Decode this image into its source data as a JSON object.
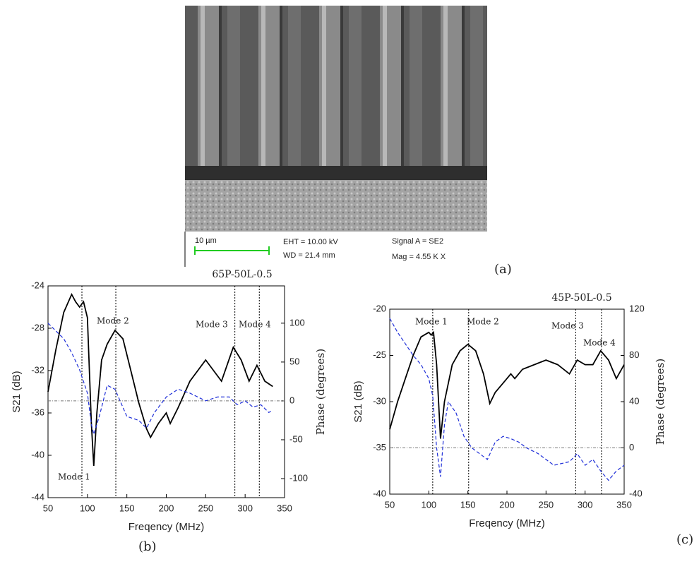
{
  "image": {
    "scale_bar": "10 µm",
    "eht": "EHT = 10.00 kV",
    "wd": "WD = 21.4 mm",
    "signal": "Signal A = SE2",
    "mag": "Mag =  4.55 K X"
  },
  "panel_labels": [
    "(a)",
    "(b)",
    "(c)"
  ],
  "chart_data": [
    {
      "type": "line",
      "title": "65P-50L-0.5",
      "xlabel": "Freqency (MHz)",
      "ylabel": "S21 (dB)",
      "y2label": "Phase (degrees)",
      "xlim": [
        50,
        350
      ],
      "xticks": [
        50,
        100,
        150,
        200,
        250,
        300,
        350
      ],
      "ylim": [
        -44,
        -24
      ],
      "yticks": [
        -44,
        -40,
        -36,
        -32,
        -28,
        -24
      ],
      "y2lim": [
        -124.5,
        148
      ],
      "y2ticks": [
        -100,
        -50,
        0,
        50,
        100
      ],
      "annotations": [
        {
          "text": "Mode 1",
          "x": 93
        },
        {
          "text": "Mode 2",
          "x": 136
        },
        {
          "text": "Mode 3",
          "x": 287
        },
        {
          "text": "Mode 4",
          "x": 318
        }
      ],
      "series": [
        {
          "color": "#000000",
          "axis": "y",
          "x": [
            50,
            60,
            70,
            80,
            85,
            90,
            95,
            100,
            105,
            108,
            112,
            118,
            125,
            135,
            145,
            155,
            165,
            175,
            180,
            190,
            200,
            205,
            215,
            230,
            250,
            260,
            270,
            285,
            295,
            305,
            315,
            325,
            335
          ],
          "values": [
            -34,
            -30,
            -26.5,
            -24.8,
            -25.5,
            -26,
            -25.5,
            -27,
            -37,
            -41,
            -36,
            -31,
            -29.5,
            -28.2,
            -29,
            -32,
            -35,
            -37.5,
            -38.3,
            -37,
            -36,
            -37,
            -35.5,
            -33,
            -31,
            -32,
            -33,
            -29.8,
            -31,
            -33,
            -31.5,
            -33,
            -33.5
          ]
        },
        {
          "color": "#1f2fd8",
          "axis": "y2",
          "dash": true,
          "x": [
            50,
            60,
            70,
            80,
            90,
            100,
            105,
            108,
            115,
            125,
            135,
            150,
            165,
            175,
            185,
            200,
            215,
            230,
            250,
            265,
            280,
            290,
            300,
            310,
            320,
            330,
            335
          ],
          "values": [
            100,
            90,
            80,
            62,
            40,
            10,
            -30,
            -43,
            -20,
            20,
            15,
            -20,
            -25,
            -35,
            -15,
            5,
            15,
            10,
            0,
            5,
            5,
            -5,
            0,
            -8,
            -5,
            -15,
            -12
          ]
        }
      ]
    },
    {
      "type": "line",
      "title": "45P-50L-0.5",
      "xlabel": "Freqency (MHz)",
      "ylabel": "S21 (dB)",
      "y2label": "Phase (degrees)",
      "xlim": [
        50,
        350
      ],
      "xticks": [
        50,
        100,
        150,
        200,
        250,
        300,
        350
      ],
      "ylim": [
        -40,
        -20
      ],
      "yticks": [
        -40,
        -35,
        -30,
        -25,
        -20
      ],
      "y2lim": [
        -40,
        120
      ],
      "y2ticks": [
        -40,
        0,
        40,
        80,
        120
      ],
      "annotations": [
        {
          "text": "Mode 1",
          "x": 105
        },
        {
          "text": "Mode 2",
          "x": 151
        },
        {
          "text": "Mode 3",
          "x": 288
        },
        {
          "text": "Mode 4",
          "x": 321
        }
      ],
      "series": [
        {
          "color": "#000000",
          "axis": "y",
          "x": [
            50,
            60,
            70,
            80,
            90,
            100,
            103,
            106,
            110,
            115,
            120,
            130,
            140,
            150,
            160,
            170,
            178,
            185,
            195,
            205,
            210,
            220,
            235,
            250,
            265,
            280,
            290,
            300,
            310,
            320,
            330,
            340,
            350
          ],
          "values": [
            -33,
            -30,
            -27.5,
            -25,
            -23,
            -22.5,
            -22.8,
            -22.5,
            -26,
            -34,
            -30,
            -26,
            -24.5,
            -23.8,
            -24.5,
            -27,
            -30.2,
            -29,
            -28,
            -27,
            -27.5,
            -26.5,
            -26,
            -25.5,
            -26,
            -27,
            -25.5,
            -26,
            -26,
            -24.5,
            -25.5,
            -27.5,
            -26
          ]
        },
        {
          "color": "#1f2fd8",
          "axis": "y2",
          "dash": true,
          "x": [
            50,
            60,
            70,
            80,
            90,
            100,
            105,
            110,
            115,
            120,
            125,
            135,
            145,
            155,
            165,
            175,
            185,
            195,
            205,
            215,
            225,
            240,
            260,
            280,
            290,
            300,
            310,
            320,
            330,
            340,
            350
          ],
          "values": [
            112,
            100,
            90,
            80,
            72,
            60,
            45,
            0,
            -25,
            20,
            40,
            30,
            10,
            0,
            -5,
            -10,
            5,
            10,
            8,
            5,
            0,
            -5,
            -15,
            -12,
            -5,
            -15,
            -10,
            -20,
            -28,
            -20,
            -15
          ]
        }
      ]
    }
  ]
}
